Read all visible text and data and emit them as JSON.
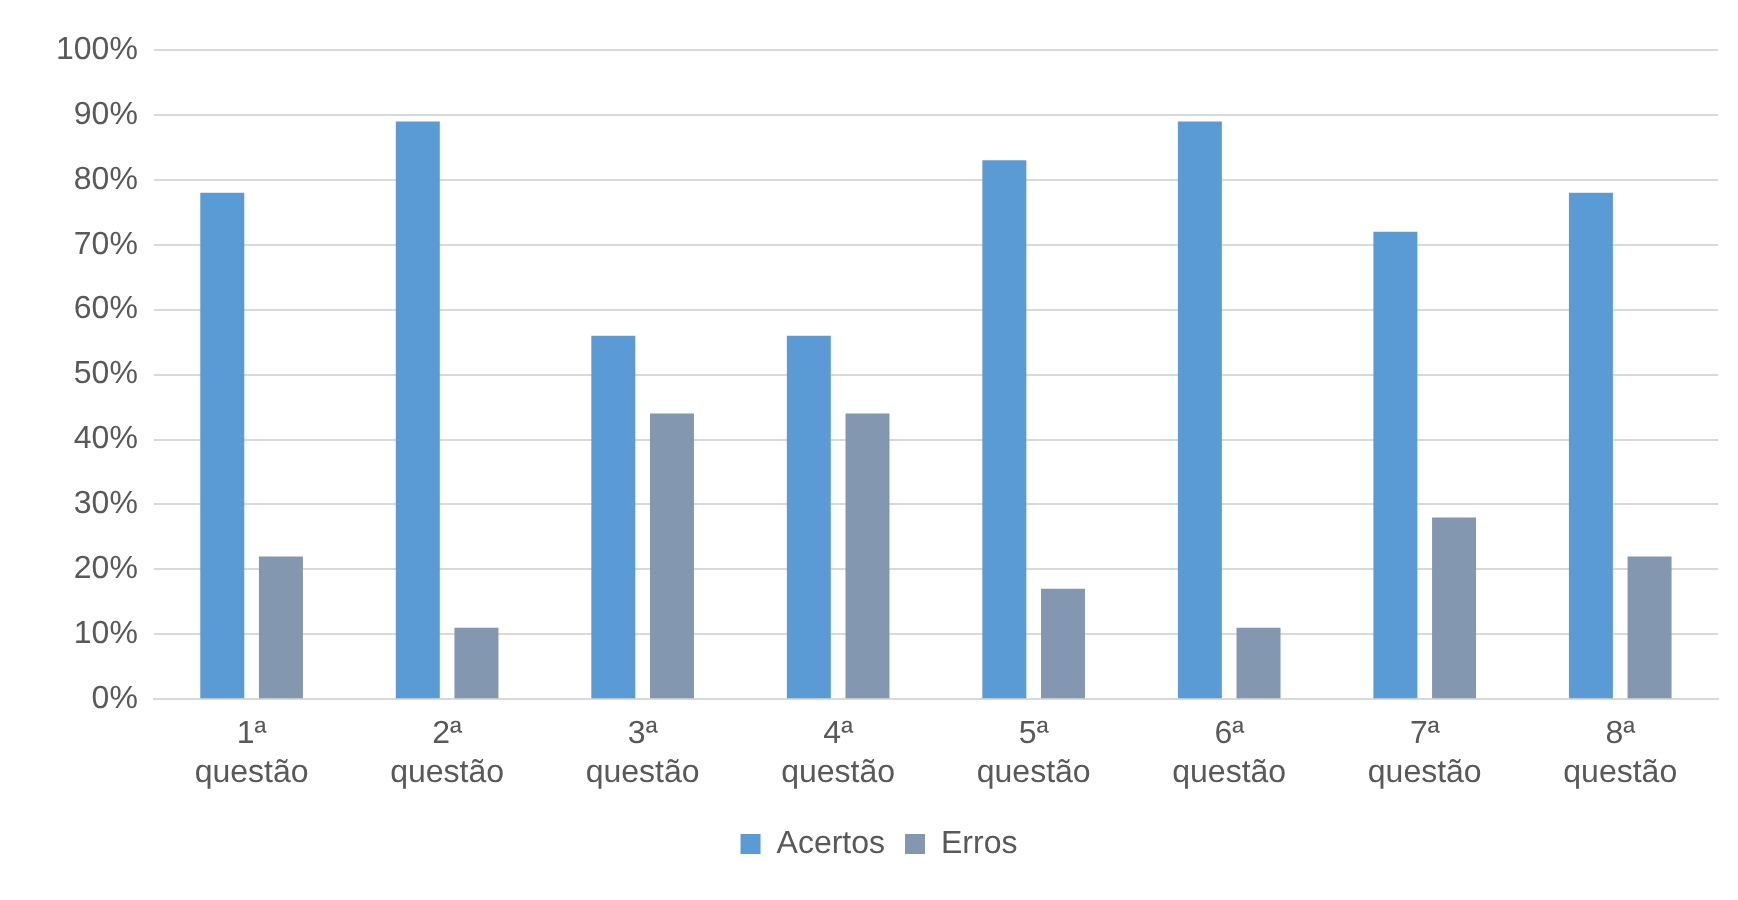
{
  "chart_data": {
    "type": "bar",
    "categories": [
      "1ª questão",
      "2ª questão",
      "3ª questão",
      "4ª questão",
      "5ª questão",
      "6ª questão",
      "7ª questão",
      "8ª questão"
    ],
    "series": [
      {
        "name": "Acertos",
        "color": "#5b9bd5",
        "values": [
          78,
          89,
          56,
          56,
          83,
          89,
          72,
          78
        ]
      },
      {
        "name": "Erros",
        "color": "#8497b0",
        "values": [
          22,
          11,
          44,
          44,
          17,
          11,
          28,
          22
        ]
      }
    ],
    "ylim": [
      0,
      100
    ],
    "yticks": [
      {
        "value": 0,
        "label": "0%"
      },
      {
        "value": 10,
        "label": "10%"
      },
      {
        "value": 20,
        "label": "20%"
      },
      {
        "value": 30,
        "label": "30%"
      },
      {
        "value": 40,
        "label": "40%"
      },
      {
        "value": 50,
        "label": "50%"
      },
      {
        "value": 60,
        "label": "60%"
      },
      {
        "value": 70,
        "label": "70%"
      },
      {
        "value": 80,
        "label": "80%"
      },
      {
        "value": 90,
        "label": "90%"
      },
      {
        "value": 100,
        "label": "100%"
      }
    ],
    "grid": "y",
    "legend": "bottom"
  }
}
